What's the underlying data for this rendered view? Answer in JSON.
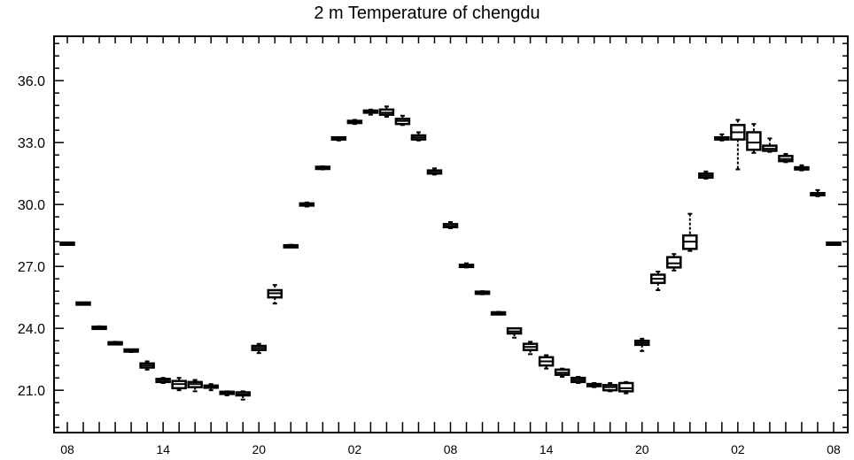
{
  "chart_data": {
    "type": "box",
    "title": "2 m Temperature of chengdu",
    "xlabel": "",
    "ylabel": "",
    "ylim": [
      18.95,
      38.15
    ],
    "y_ticks": [
      "36.0",
      "33.0",
      "30.0",
      "27.0",
      "24.0",
      "21.0"
    ],
    "y_tick_values": [
      36.0,
      33.0,
      30.0,
      27.0,
      24.0,
      21.0
    ],
    "x_tick_labels": [
      "08",
      "14",
      "20",
      "02",
      "08",
      "14",
      "20",
      "02",
      "08"
    ],
    "x_label_hours": [
      0,
      6,
      12,
      18,
      24,
      30,
      36,
      42,
      48
    ],
    "grid": false,
    "boxes": [
      {
        "hour": 0,
        "min": 28.05,
        "q1": 28.05,
        "median": 28.1,
        "q3": 28.15,
        "max": 28.15
      },
      {
        "hour": 1,
        "min": 25.15,
        "q1": 25.15,
        "median": 25.2,
        "q3": 25.25,
        "max": 25.25
      },
      {
        "hour": 2,
        "min": 24.0,
        "q1": 24.0,
        "median": 24.05,
        "q3": 24.05,
        "max": 24.1
      },
      {
        "hour": 3,
        "min": 23.25,
        "q1": 23.25,
        "median": 23.3,
        "q3": 23.3,
        "max": 23.35
      },
      {
        "hour": 4,
        "min": 22.85,
        "q1": 22.9,
        "median": 22.9,
        "q3": 22.95,
        "max": 22.95
      },
      {
        "hour": 5,
        "min": 22.0,
        "q1": 22.1,
        "median": 22.2,
        "q3": 22.3,
        "max": 22.4
      },
      {
        "hour": 6,
        "min": 21.35,
        "q1": 21.4,
        "median": 21.5,
        "q3": 21.55,
        "max": 21.6
      },
      {
        "hour": 7,
        "min": 21.0,
        "q1": 21.1,
        "median": 21.3,
        "q3": 21.45,
        "max": 21.6
      },
      {
        "hour": 8,
        "min": 20.95,
        "q1": 21.15,
        "median": 21.3,
        "q3": 21.4,
        "max": 21.5
      },
      {
        "hour": 9,
        "min": 21.0,
        "q1": 21.15,
        "median": 21.2,
        "q3": 21.2,
        "max": 21.3
      },
      {
        "hour": 10,
        "min": 20.75,
        "q1": 20.85,
        "median": 20.85,
        "q3": 20.9,
        "max": 20.95
      },
      {
        "hour": 11,
        "min": 20.55,
        "q1": 20.75,
        "median": 20.8,
        "q3": 20.9,
        "max": 20.95
      },
      {
        "hour": 12,
        "min": 22.8,
        "q1": 22.95,
        "median": 23.05,
        "q3": 23.15,
        "max": 23.25
      },
      {
        "hour": 13,
        "min": 25.2,
        "q1": 25.5,
        "median": 25.7,
        "q3": 25.85,
        "max": 26.1
      },
      {
        "hour": 14,
        "min": 27.95,
        "q1": 27.95,
        "median": 28.0,
        "q3": 28.0,
        "max": 28.05
      },
      {
        "hour": 15,
        "min": 29.9,
        "q1": 29.95,
        "median": 30.0,
        "q3": 30.05,
        "max": 30.1
      },
      {
        "hour": 16,
        "min": 31.7,
        "q1": 31.75,
        "median": 31.8,
        "q3": 31.8,
        "max": 31.85
      },
      {
        "hour": 17,
        "min": 33.1,
        "q1": 33.15,
        "median": 33.2,
        "q3": 33.25,
        "max": 33.25
      },
      {
        "hour": 18,
        "min": 33.9,
        "q1": 33.95,
        "median": 34.0,
        "q3": 34.05,
        "max": 34.1
      },
      {
        "hour": 19,
        "min": 34.35,
        "q1": 34.45,
        "median": 34.5,
        "q3": 34.55,
        "max": 34.6
      },
      {
        "hour": 20,
        "min": 34.25,
        "q1": 34.35,
        "median": 34.45,
        "q3": 34.6,
        "max": 34.75
      },
      {
        "hour": 21,
        "min": 33.85,
        "q1": 33.9,
        "median": 34.05,
        "q3": 34.15,
        "max": 34.3
      },
      {
        "hour": 22,
        "min": 33.1,
        "q1": 33.15,
        "median": 33.25,
        "q3": 33.35,
        "max": 33.5
      },
      {
        "hour": 23,
        "min": 31.45,
        "q1": 31.5,
        "median": 31.6,
        "q3": 31.65,
        "max": 31.75
      },
      {
        "hour": 24,
        "min": 28.85,
        "q1": 28.9,
        "median": 28.95,
        "q3": 29.05,
        "max": 29.15
      },
      {
        "hour": 25,
        "min": 26.95,
        "q1": 27.0,
        "median": 27.05,
        "q3": 27.05,
        "max": 27.15
      },
      {
        "hour": 26,
        "min": 25.65,
        "q1": 25.7,
        "median": 25.7,
        "q3": 25.75,
        "max": 25.8
      },
      {
        "hour": 27,
        "min": 24.7,
        "q1": 24.7,
        "median": 24.75,
        "q3": 24.75,
        "max": 24.8
      },
      {
        "hour": 28,
        "min": 23.55,
        "q1": 23.75,
        "median": 23.85,
        "q3": 24.0,
        "max": 24.0
      },
      {
        "hour": 29,
        "min": 22.75,
        "q1": 22.95,
        "median": 23.1,
        "q3": 23.25,
        "max": 23.35
      },
      {
        "hour": 30,
        "min": 22.05,
        "q1": 22.2,
        "median": 22.4,
        "q3": 22.6,
        "max": 22.7
      },
      {
        "hour": 31,
        "min": 21.65,
        "q1": 21.75,
        "median": 21.85,
        "q3": 22.0,
        "max": 22.05
      },
      {
        "hour": 32,
        "min": 21.35,
        "q1": 21.4,
        "median": 21.5,
        "q3": 21.6,
        "max": 21.65
      },
      {
        "hour": 33,
        "min": 21.15,
        "q1": 21.2,
        "median": 21.25,
        "q3": 21.3,
        "max": 21.35
      },
      {
        "hour": 34,
        "min": 20.95,
        "q1": 21.0,
        "median": 21.15,
        "q3": 21.25,
        "max": 21.35
      },
      {
        "hour": 35,
        "min": 20.85,
        "q1": 20.95,
        "median": 21.1,
        "q3": 21.35,
        "max": 21.4
      },
      {
        "hour": 36,
        "min": 22.9,
        "q1": 23.2,
        "median": 23.3,
        "q3": 23.4,
        "max": 23.5
      },
      {
        "hour": 37,
        "min": 25.85,
        "q1": 26.2,
        "median": 26.4,
        "q3": 26.6,
        "max": 26.75
      },
      {
        "hour": 38,
        "min": 26.8,
        "q1": 26.95,
        "median": 27.15,
        "q3": 27.45,
        "max": 27.6
      },
      {
        "hour": 39,
        "min": 27.75,
        "q1": 27.85,
        "median": 28.2,
        "q3": 28.5,
        "max": 29.55
      },
      {
        "hour": 40,
        "min": 31.25,
        "q1": 31.3,
        "median": 31.4,
        "q3": 31.5,
        "max": 31.6
      },
      {
        "hour": 41,
        "min": 33.1,
        "q1": 33.15,
        "median": 33.2,
        "q3": 33.25,
        "max": 33.4
      },
      {
        "hour": 42,
        "min": 31.7,
        "q1": 33.15,
        "median": 33.5,
        "q3": 33.85,
        "max": 34.1
      },
      {
        "hour": 43,
        "min": 32.5,
        "q1": 32.65,
        "median": 33.0,
        "q3": 33.5,
        "max": 33.9
      },
      {
        "hour": 44,
        "min": 32.55,
        "q1": 32.6,
        "median": 32.7,
        "q3": 32.85,
        "max": 33.2
      },
      {
        "hour": 45,
        "min": 32.05,
        "q1": 32.1,
        "median": 32.2,
        "q3": 32.35,
        "max": 32.45
      },
      {
        "hour": 46,
        "min": 31.65,
        "q1": 31.7,
        "median": 31.75,
        "q3": 31.8,
        "max": 31.9
      },
      {
        "hour": 47,
        "min": 30.4,
        "q1": 30.45,
        "median": 30.5,
        "q3": 30.55,
        "max": 30.7
      },
      {
        "hour": 48,
        "min": 28.05,
        "q1": 28.05,
        "median": 28.1,
        "q3": 28.15,
        "max": 28.15
      }
    ]
  }
}
